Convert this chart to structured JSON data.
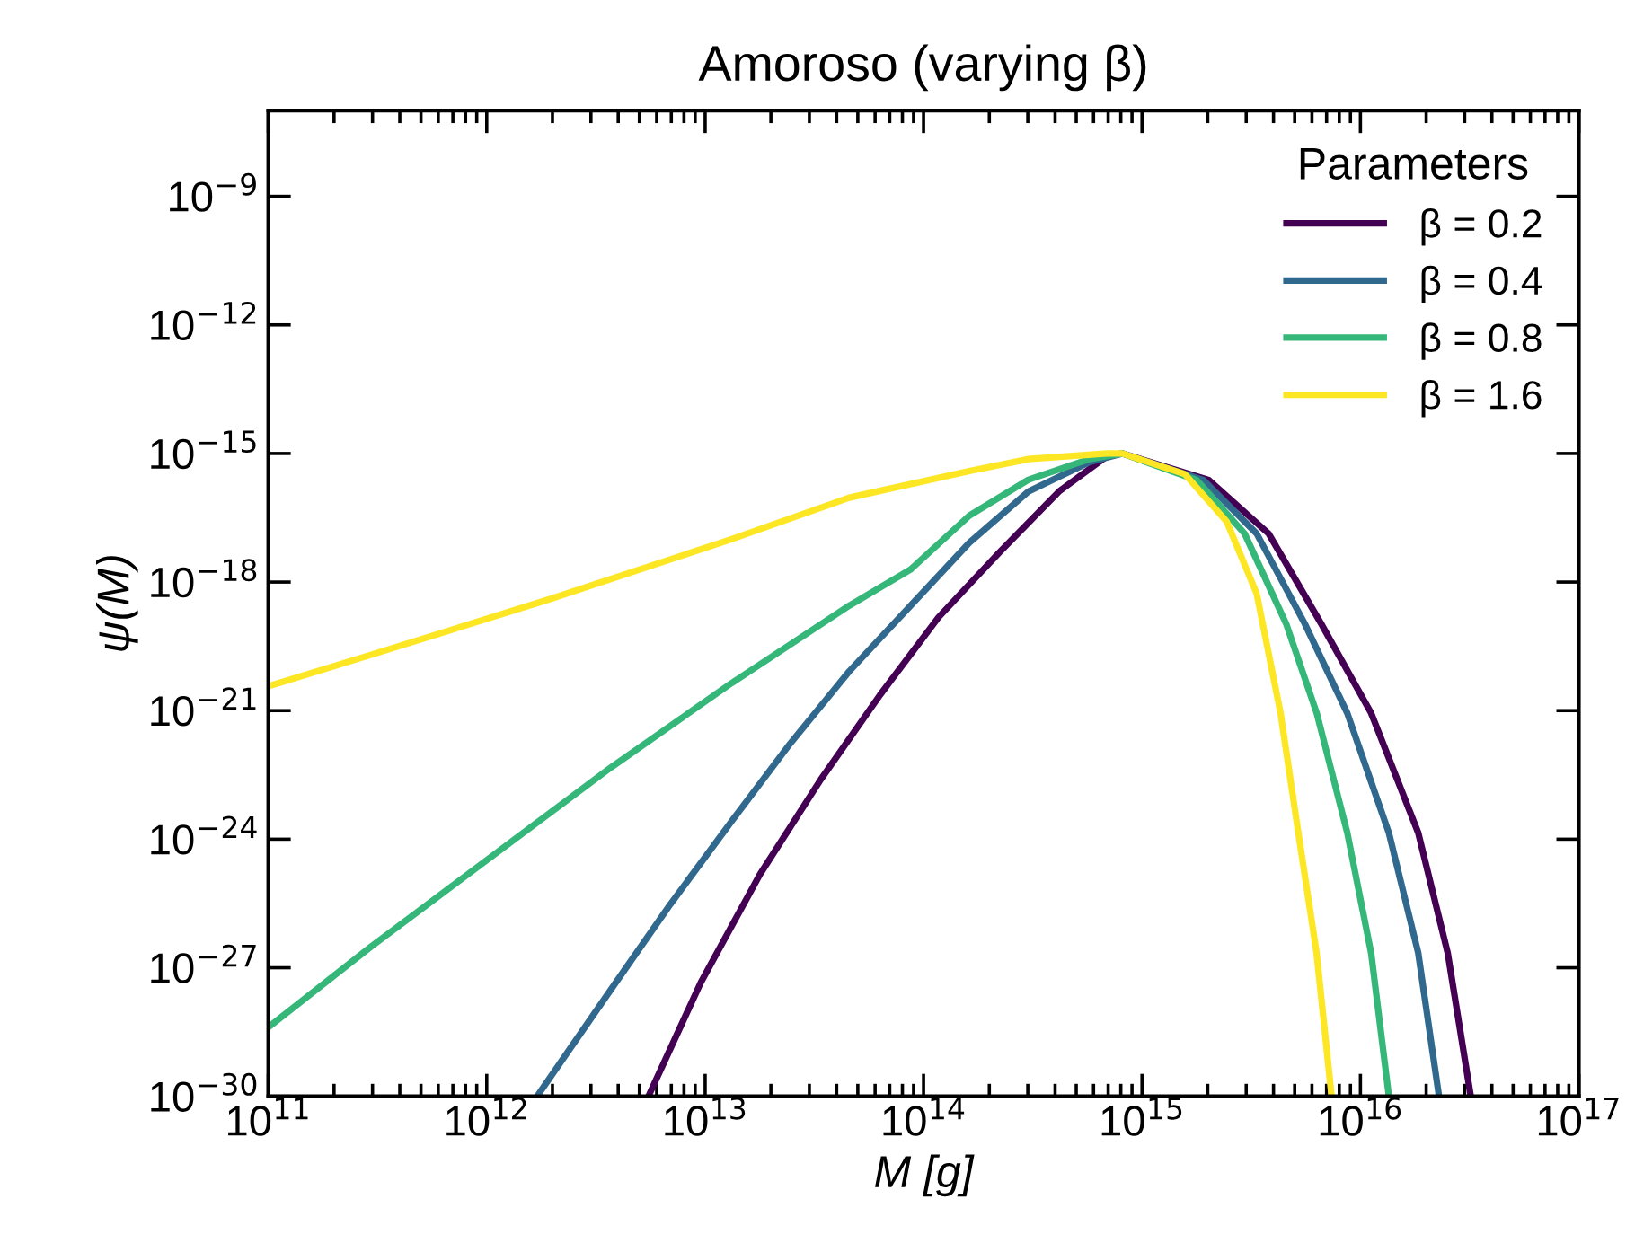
{
  "chart_data": {
    "type": "line",
    "title": "Amoroso (varying β)",
    "xlabel": "M [g]",
    "ylabel": "ψ(M)",
    "legend_title": "Parameters",
    "legend": "top right",
    "log": "xy",
    "grid": false,
    "line_style": "solid",
    "marker": "none",
    "xlim": [
      100000000000.0,
      1e+17
    ],
    "ylim": [
      1e-30,
      1e-07
    ],
    "xticks": [
      {
        "value": 100000000000.0,
        "label": "10$^{11}$"
      },
      {
        "value": 1000000000000.0,
        "label": "10$^{12}$"
      },
      {
        "value": 10000000000000.0,
        "label": "10$^{13}$"
      },
      {
        "value": 100000000000000.0,
        "label": "10$^{14}$"
      },
      {
        "value": 1000000000000000.0,
        "label": "10$^{15}$"
      },
      {
        "value": 1e+16,
        "label": "10$^{16}$"
      },
      {
        "value": 1e+17,
        "label": "10$^{17}$"
      }
    ],
    "yticks": [
      {
        "value": 1e-30,
        "label": "10$^{−30}$"
      },
      {
        "value": 1e-27,
        "label": "10$^{−27}$"
      },
      {
        "value": 1e-24,
        "label": "10$^{−24}$"
      },
      {
        "value": 1e-21,
        "label": "10$^{−21}$"
      },
      {
        "value": 1e-18,
        "label": "10$^{−18}$"
      },
      {
        "value": 1e-15,
        "label": "10$^{−15}$"
      },
      {
        "value": 1e-12,
        "label": "10$^{−12}$"
      },
      {
        "value": 1e-09,
        "label": "10$^{−9}$"
      }
    ],
    "series": [
      {
        "name": "β = 0.2",
        "color": "#440154",
        "x": [
          5500000000000.0,
          9550000000000.0,
          17800000000000.0,
          33900000000000.0,
          63100000000000.0,
          117000000000000.0,
          224000000000000.0,
          417000000000000.0,
          692000000000000.0,
          813000000000000.0,
          2020000000000000.0,
          3800000000000000.0,
          6610000000000000.0,
          1.12e+16,
          1.84e+16,
          2.51e+16,
          3.2e+16
        ],
        "values": [
          1e-30,
          4.5e-28,
          1.5e-25,
          2.5e-23,
          2.3e-21,
          1.5e-19,
          5.1e-18,
          1.3e-16,
          8.7e-16,
          1e-15,
          2.4e-16,
          1.35e-17,
          1.07e-19,
          8.7e-22,
          1.4e-24,
          2.2e-27,
          1e-30
        ]
      },
      {
        "name": "β = 0.4",
        "color": "#31688e",
        "x": [
          1700000000000.0,
          3720000000000.0,
          6920000000000.0,
          13200000000000.0,
          24500000000000.0,
          45700000000000.0,
          87100000000000.0,
          162000000000000.0,
          302000000000000.0,
          575000000000000.0,
          813000000000000.0,
          1910000000000000.0,
          3350000000000000.0,
          5560000000000000.0,
          8710000000000000.0,
          1.35e+16,
          1.84e+16,
          2.29e+16
        ],
        "values": [
          1e-30,
          3.2e-28,
          3e-26,
          2.6e-24,
          1.7e-22,
          8.3e-21,
          2.8e-19,
          8.3e-18,
          1.3e-16,
          6.3e-16,
          1e-15,
          2.4e-16,
          1.35e-17,
          1.07e-19,
          8.7e-22,
          1.4e-24,
          2.2e-27,
          1e-30
        ]
      },
      {
        "name": "β = 0.8",
        "color": "#35b779",
        "x": [
          100000000000.0,
          295000000000.0,
          1050000000000.0,
          3720000000000.0,
          13200000000000.0,
          45700000000000.0,
          87100000000000.0,
          162000000000000.0,
          302000000000000.0,
          575000000000000.0,
          813000000000000.0,
          1780000000000000.0,
          2950000000000000.0,
          4570000000000000.0,
          6310000000000000.0,
          8710000000000000.0,
          1.12e+16,
          1.35e+16
        ],
        "values": [
          4.07e-29,
          3.09e-27,
          3.89e-25,
          4.79e-23,
          4.37e-21,
          2.82e-19,
          1.95e-18,
          3.55e-17,
          2.45e-16,
          7.4e-16,
          1e-15,
          2.4e-16,
          1.35e-17,
          1.07e-19,
          8.7e-22,
          1.4e-24,
          2.2e-27,
          1e-30
        ]
      },
      {
        "name": "β = 1.6",
        "color": "#fde725",
        "x": [
          100000000000.0,
          295000000000.0,
          1950000000000.0,
          13200000000000.0,
          45700000000000.0,
          162000000000000.0,
          302000000000000.0,
          692000000000000.0,
          813000000000000.0,
          1570000000000000.0,
          2440000000000000.0,
          3350000000000000.0,
          4310000000000000.0,
          5200000000000000.0,
          6300000000000000.0,
          7380000000000000.0
        ],
        "values": [
          3.7e-21,
          2e-20,
          4e-19,
          1e-17,
          9.3e-17,
          3.9e-16,
          7.4e-16,
          1e-15,
          1e-15,
          3.3e-16,
          2.6e-17,
          5.4e-19,
          8.7e-22,
          1.4e-24,
          2.2e-27,
          1e-30
        ]
      }
    ]
  }
}
